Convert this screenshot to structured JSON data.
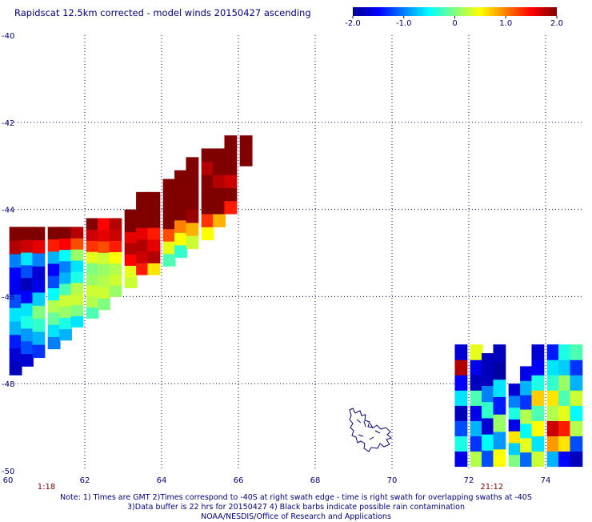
{
  "title": "Rapidscat 12.5km corrected - model winds 20150427 ascending",
  "colorbar": {
    "ticks": [
      {
        "value": -2.0,
        "label": "-2.0"
      },
      {
        "value": -1.0,
        "label": "-1.0"
      },
      {
        "value": 0,
        "label": "0"
      },
      {
        "value": 1.0,
        "label": "1.0"
      },
      {
        "value": 2.0,
        "label": "2.0"
      }
    ],
    "range": [
      -2.0,
      2.0
    ]
  },
  "chart_data": {
    "type": "heatmap",
    "title": "Rapidscat 12.5km corrected - model winds 20150427 ascending",
    "xlim": [
      60,
      75
    ],
    "ylim": [
      -50,
      -40
    ],
    "x_ticks": [
      {
        "value": 60,
        "label": "60"
      },
      {
        "value": 62,
        "label": "62"
      },
      {
        "value": 64,
        "label": "64"
      },
      {
        "value": 66,
        "label": "66"
      },
      {
        "value": 68,
        "label": "68"
      },
      {
        "value": 70,
        "label": "70"
      },
      {
        "value": 72,
        "label": "72"
      },
      {
        "value": 74,
        "label": "74"
      }
    ],
    "y_ticks": [
      {
        "value": -40,
        "label": "-40"
      },
      {
        "value": -42,
        "label": "-42"
      },
      {
        "value": -44,
        "label": "-44"
      },
      {
        "value": -46,
        "label": "-46"
      },
      {
        "value": -48,
        "label": "-48"
      },
      {
        "value": -50,
        "label": "-50"
      }
    ],
    "grid": true,
    "color_range": [
      -2.0,
      2.0
    ],
    "swath_times": [
      {
        "x": 61.0,
        "label": "1:18",
        "color": "#8b0000"
      },
      {
        "x": 72.6,
        "label": "21:12",
        "color": "#8b0000"
      }
    ],
    "swaths": [
      {
        "name": "swath-1",
        "columns": [
          {
            "x": 60.2,
            "y_bottom": -47.8,
            "y_top": -44.4,
            "values": [
              -1.8,
              -1.7,
              -1.4,
              -0.8,
              -0.6,
              -1.2,
              -1.6,
              -1.5,
              -1.0,
              1.8,
              2.0
            ]
          },
          {
            "x": 60.5,
            "y_bottom": -47.6,
            "y_top": -44.4,
            "values": [
              -1.7,
              -1.2,
              -0.9,
              -0.4,
              -0.6,
              -1.5,
              -1.8,
              -1.2,
              -0.6,
              1.7,
              2.0
            ]
          },
          {
            "x": 60.8,
            "y_bottom": -47.4,
            "y_top": -44.4,
            "values": [
              -1.3,
              -0.8,
              -0.3,
              0.0,
              -0.7,
              -1.6,
              -1.7,
              -1.0,
              1.6,
              2.0
            ]
          },
          {
            "x": 61.2,
            "y_bottom": -47.2,
            "y_top": -44.4,
            "values": [
              -1.0,
              -0.6,
              -0.1,
              0.2,
              -0.5,
              -1.2,
              -1.5,
              -0.8,
              1.4,
              2.0
            ]
          },
          {
            "x": 61.5,
            "y_bottom": -47.0,
            "y_top": -44.4,
            "values": [
              -0.8,
              -0.4,
              0.1,
              0.3,
              -0.2,
              -0.8,
              -1.0,
              -0.5,
              1.5,
              2.0
            ]
          },
          {
            "x": 61.8,
            "y_bottom": -46.7,
            "y_top": -44.4,
            "values": [
              -0.6,
              0.0,
              0.3,
              0.2,
              -0.4,
              -0.6,
              0.1,
              1.2,
              1.8
            ]
          },
          {
            "x": 62.2,
            "y_bottom": -46.5,
            "y_top": -44.2,
            "values": [
              -0.2,
              0.2,
              0.3,
              0.1,
              0.0,
              0.4,
              1.3,
              1.7,
              2.0
            ]
          },
          {
            "x": 62.5,
            "y_bottom": -46.3,
            "y_top": -44.2,
            "values": [
              0.0,
              0.3,
              0.2,
              0.1,
              0.3,
              1.2,
              1.6,
              1.5
            ]
          },
          {
            "x": 62.8,
            "y_bottom": -46.0,
            "y_top": -44.2,
            "values": [
              0.1,
              0.3,
              0.2,
              0.5,
              1.4,
              1.7,
              1.8
            ]
          },
          {
            "x": 63.2,
            "y_bottom": -45.8,
            "y_top": -44.0,
            "values": [
              0.3,
              0.4,
              1.5,
              1.8,
              1.6,
              2.0,
              2.0
            ]
          },
          {
            "x": 63.5,
            "y_bottom": -45.5,
            "y_top": -43.6,
            "values": [
              1.4,
              1.7,
              1.8,
              1.6,
              2.0,
              2.0,
              2.0
            ]
          },
          {
            "x": 63.8,
            "y_bottom": -45.5,
            "y_top": -43.6,
            "values": [
              0.6,
              1.8,
              1.6,
              1.4,
              2.0,
              2.0,
              2.0
            ]
          },
          {
            "x": 64.2,
            "y_bottom": -45.3,
            "y_top": -43.3,
            "values": [
              -0.2,
              0.4,
              1.2,
              2.0,
              2.0,
              2.0,
              2.0
            ]
          },
          {
            "x": 64.5,
            "y_bottom": -45.1,
            "y_top": -43.1,
            "values": [
              -0.3,
              0.5,
              1.0,
              2.0,
              2.0,
              2.0,
              2.0
            ]
          },
          {
            "x": 64.8,
            "y_bottom": -44.9,
            "y_top": -42.8,
            "values": [
              0.3,
              0.8,
              1.9,
              2.0,
              2.0,
              2.0,
              2.0
            ]
          },
          {
            "x": 65.2,
            "y_bottom": -44.7,
            "y_top": -42.6,
            "values": [
              0.5,
              1.3,
              2.0,
              2.0,
              2.0,
              1.8,
              2.0
            ]
          },
          {
            "x": 65.5,
            "y_bottom": -44.4,
            "y_top": -42.6,
            "values": [
              0.8,
              2.0,
              2.0,
              1.8,
              2.0,
              2.0
            ]
          },
          {
            "x": 65.8,
            "y_bottom": -44.1,
            "y_top": -42.3,
            "values": [
              1.4,
              2.0,
              1.7,
              2.0,
              2.0,
              2.0
            ]
          },
          {
            "x": 66.2,
            "y_bottom": -43.0,
            "y_top": -42.3,
            "values": [
              2.0,
              2.0
            ]
          }
        ]
      },
      {
        "name": "swath-2",
        "columns": [
          {
            "x": 71.8,
            "y_bottom": -49.9,
            "y_top": -47.1,
            "values": [
              -1.6,
              -0.4,
              -1.2,
              -1.8,
              -0.6,
              -1.5,
              1.8,
              -1.7
            ]
          },
          {
            "x": 72.2,
            "y_bottom": -49.9,
            "y_top": -47.1,
            "values": [
              0.2,
              -1.3,
              -0.8,
              -1.6,
              -0.2,
              -1.8,
              -1.6,
              0.4
            ]
          },
          {
            "x": 72.5,
            "y_bottom": -49.9,
            "y_top": -47.3,
            "values": [
              -1.2,
              -0.5,
              -1.7,
              -0.3,
              -1.0,
              -1.8,
              -1.8
            ]
          },
          {
            "x": 72.8,
            "y_bottom": -49.9,
            "y_top": -47.1,
            "values": [
              0.5,
              -0.9,
              0.1,
              -1.4,
              -0.6,
              -1.9,
              -1.8
            ]
          },
          {
            "x": 73.2,
            "y_bottom": -49.9,
            "y_top": -48.0,
            "values": [
              0.0,
              -0.7,
              0.6,
              -1.6,
              -0.4,
              -1.0,
              -1.7
            ]
          },
          {
            "x": 73.5,
            "y_bottom": -49.9,
            "y_top": -47.6,
            "values": [
              -1.1,
              0.4,
              -0.5,
              0.2,
              -1.3,
              -0.8,
              -1.6
            ]
          },
          {
            "x": 73.8,
            "y_bottom": -49.9,
            "y_top": -47.1,
            "values": [
              0.3,
              -0.6,
              0.5,
              -0.2,
              0.7,
              -0.4,
              -1.5,
              -1.7
            ]
          },
          {
            "x": 74.2,
            "y_bottom": -49.9,
            "y_top": -47.1,
            "values": [
              -0.8,
              0.9,
              1.7,
              0.2,
              0.6,
              -0.3,
              -0.6,
              -1.4
            ]
          },
          {
            "x": 74.5,
            "y_bottom": -49.9,
            "y_top": -47.1,
            "values": [
              -1.5,
              0.6,
              1.4,
              0.4,
              -0.2,
              0.1,
              -0.7,
              -0.4
            ]
          },
          {
            "x": 74.8,
            "y_bottom": -49.9,
            "y_top": -47.1,
            "values": [
              -1.8,
              -1.2,
              0.2,
              -0.5,
              0.3,
              -0.8,
              -1.3,
              -0.2
            ]
          }
        ]
      }
    ]
  },
  "footer": {
    "line1": "Note: 1) Times are GMT 2)Times correspond to -40S at right swath edge - time is right swath for overlapping swaths at -40S",
    "line2": "3)Data buffer is 22 hrs for 20150427 4) Black barbs indicate possible rain contamination",
    "line3": "NOAA/NESDIS/Office of Research and Applications"
  }
}
